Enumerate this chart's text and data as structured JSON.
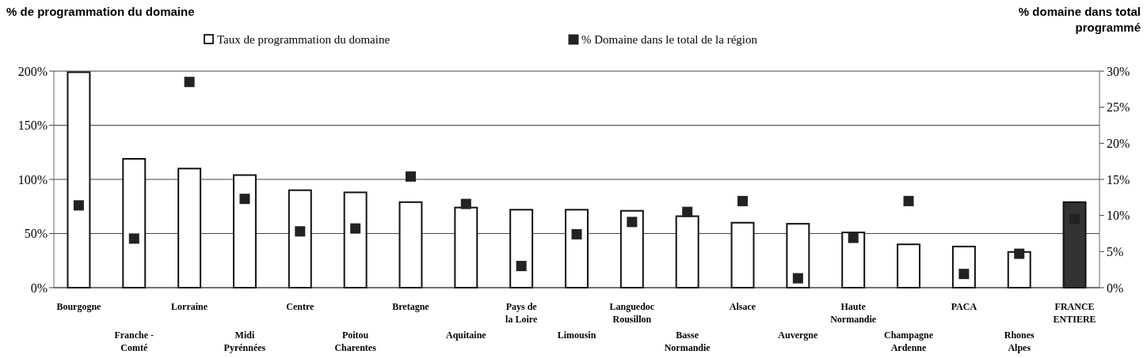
{
  "chart_data": {
    "type": "bar",
    "ylabel": "% de programmation du domaine",
    "y2label": "% domaine dans total programmé",
    "categories": [
      "Bourgogne",
      "Franche -\nComté",
      "Lorraine",
      "Midi\nPyrénnées",
      "Centre",
      "Poitou\nCharentes",
      "Bretagne",
      "Aquitaine",
      "Pays de\nla Loire",
      "Limousin",
      "Languedoc\nRousillon",
      "Basse\nNormandie",
      "Alsace",
      "Auvergne",
      "Haute\nNormandie",
      "Champagne\nArdenne",
      "PACA",
      "Rhones\nAlpes",
      "FRANCE\nENTIERE"
    ],
    "series": [
      {
        "name": "Taux de programmation du domaine",
        "color": "#ffffff",
        "colors": [
          "#ffffff",
          "#ffffff",
          "#ffffff",
          "#ffffff",
          "#ffffff",
          "#ffffff",
          "#ffffff",
          "#ffffff",
          "#ffffff",
          "#ffffff",
          "#ffffff",
          "#ffffff",
          "#ffffff",
          "#ffffff",
          "#ffffff",
          "#ffffff",
          "#ffffff",
          "#ffffff",
          "#333333"
        ],
        "values": [
          199,
          119,
          110,
          104,
          90,
          88,
          79,
          74,
          72,
          72,
          71,
          66,
          60,
          59,
          51,
          40,
          38,
          33,
          79
        ]
      },
      {
        "name": "% Domaine dans le total de la région",
        "type": "scatter",
        "axis": "y2",
        "color": "#222222",
        "values": [
          11.4,
          6.8,
          28.5,
          12.3,
          7.8,
          8.2,
          15.4,
          11.6,
          3.0,
          7.4,
          9.1,
          10.5,
          12.0,
          1.3,
          6.9,
          12.0,
          1.9,
          4.7,
          9.5
        ]
      }
    ],
    "ylim": [
      0,
      200
    ],
    "yticks": [
      {
        "value": 0,
        "label": "0%"
      },
      {
        "value": 50,
        "label": "50%"
      },
      {
        "value": 100,
        "label": "100%"
      },
      {
        "value": 150,
        "label": "150%"
      },
      {
        "value": 200,
        "label": "200%"
      }
    ],
    "y2lim": [
      0,
      30
    ],
    "y2ticks": [
      {
        "value": 0,
        "label": "0%"
      },
      {
        "value": 5,
        "label": "5%"
      },
      {
        "value": 10,
        "label": "10%"
      },
      {
        "value": 15,
        "label": "15%"
      },
      {
        "value": 20,
        "label": "20%"
      },
      {
        "value": 25,
        "label": "25%"
      },
      {
        "value": 30,
        "label": "30%"
      }
    ],
    "grid": "y",
    "legend": "top",
    "marker": "square"
  }
}
